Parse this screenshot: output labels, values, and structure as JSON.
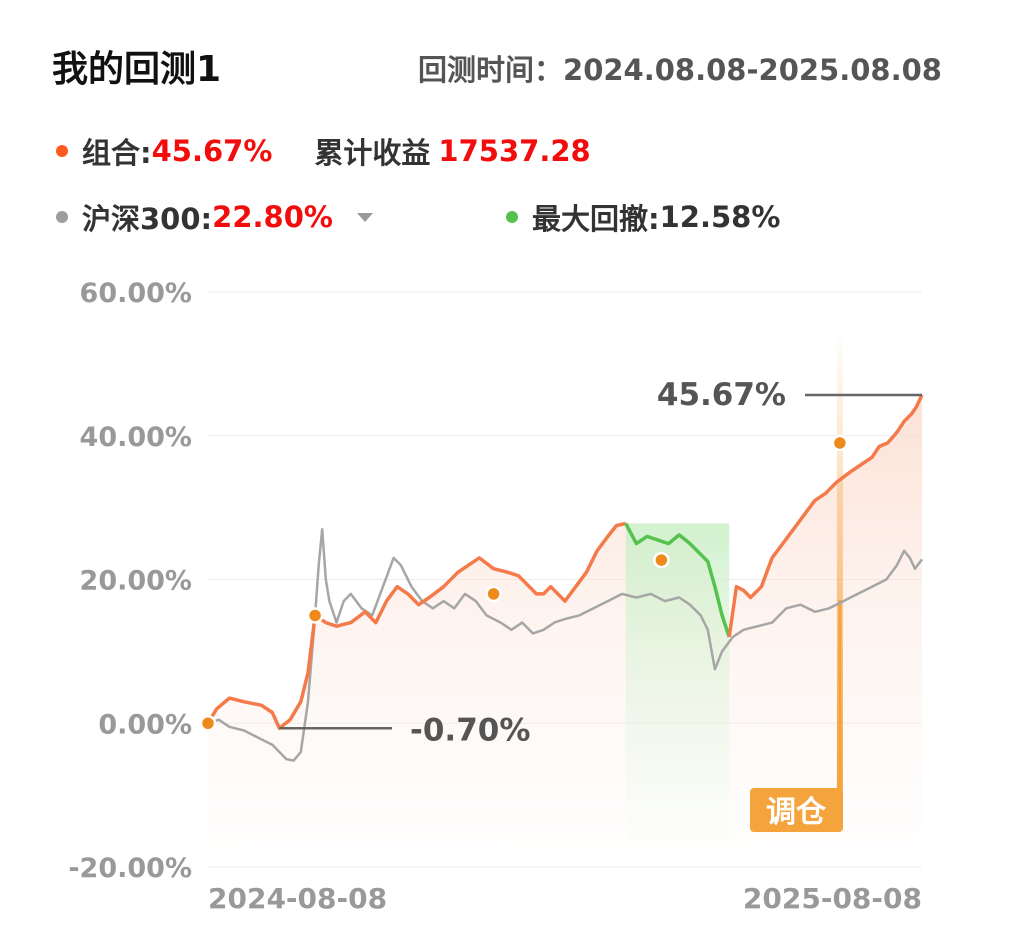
{
  "header": {
    "title": "我的回测1",
    "range_label": "回测时间：",
    "range_value": "2024.08.08-2025.08.08"
  },
  "legend": {
    "portfolio_label": "组合:",
    "portfolio_value": "45.67%",
    "cum_label": "累计收益",
    "cum_value": "17537.28",
    "benchmark_label": "沪深300:",
    "benchmark_value": "22.80%",
    "drawdown_label": "最大回撤:",
    "drawdown_value": "12.58%"
  },
  "colors": {
    "portfolio": "#f47a4a",
    "benchmark": "#a6a6a6",
    "drawdown": "#55c24e",
    "marker": "#ee8a1c",
    "rebalance": "#f5a43d",
    "value_red": "#f20c0c"
  },
  "annotations": {
    "end_value_label": "45.67%",
    "min_value_label": "-0.70%",
    "rebalance_label": "调仓"
  },
  "chart_data": {
    "type": "line",
    "ylim": [
      -20,
      60
    ],
    "yticks": [
      "60.00%",
      "40.00%",
      "20.00%",
      "0.00%",
      "-20.00%"
    ],
    "ytick_values": [
      60,
      40,
      20,
      0,
      -20
    ],
    "xlabels": [
      "2024-08-08",
      "2025-08-08"
    ],
    "grid": true,
    "series": [
      {
        "name": "组合",
        "values": [
          [
            0,
            0
          ],
          [
            0.012,
            2
          ],
          [
            0.03,
            3.5
          ],
          [
            0.05,
            3
          ],
          [
            0.075,
            2.5
          ],
          [
            0.09,
            1.5
          ],
          [
            0.1,
            -0.7
          ],
          [
            0.115,
            0.5
          ],
          [
            0.13,
            3
          ],
          [
            0.14,
            7
          ],
          [
            0.15,
            15
          ],
          [
            0.165,
            14
          ],
          [
            0.18,
            13.5
          ],
          [
            0.2,
            14
          ],
          [
            0.22,
            15.5
          ],
          [
            0.235,
            14
          ],
          [
            0.25,
            17
          ],
          [
            0.265,
            19
          ],
          [
            0.28,
            18
          ],
          [
            0.295,
            16.5
          ],
          [
            0.31,
            17.5
          ],
          [
            0.33,
            19
          ],
          [
            0.35,
            21
          ],
          [
            0.365,
            22
          ],
          [
            0.38,
            23
          ],
          [
            0.4,
            21.5
          ],
          [
            0.42,
            21
          ],
          [
            0.435,
            20.5
          ],
          [
            0.45,
            19
          ],
          [
            0.46,
            18
          ],
          [
            0.47,
            18
          ],
          [
            0.48,
            19
          ],
          [
            0.5,
            17
          ],
          [
            0.515,
            19
          ],
          [
            0.53,
            21
          ],
          [
            0.545,
            24
          ],
          [
            0.56,
            26
          ],
          [
            0.572,
            27.5
          ],
          [
            0.585,
            27.8
          ],
          [
            0.6,
            25
          ],
          [
            0.615,
            26
          ],
          [
            0.63,
            25.5
          ],
          [
            0.645,
            25
          ],
          [
            0.66,
            26.2
          ],
          [
            0.675,
            25
          ],
          [
            0.69,
            23.5
          ],
          [
            0.7,
            22.5
          ],
          [
            0.71,
            19
          ],
          [
            0.72,
            15
          ],
          [
            0.73,
            12
          ],
          [
            0.74,
            19
          ],
          [
            0.75,
            18.5
          ],
          [
            0.76,
            17.5
          ],
          [
            0.775,
            19
          ],
          [
            0.79,
            23
          ],
          [
            0.805,
            25
          ],
          [
            0.82,
            27
          ],
          [
            0.835,
            29
          ],
          [
            0.85,
            31
          ],
          [
            0.865,
            32
          ],
          [
            0.88,
            33.5
          ],
          [
            0.9,
            35
          ],
          [
            0.915,
            36
          ],
          [
            0.93,
            37
          ],
          [
            0.94,
            38.5
          ],
          [
            0.952,
            39
          ],
          [
            0.965,
            40.5
          ],
          [
            0.975,
            42
          ],
          [
            0.985,
            43
          ],
          [
            0.992,
            44
          ],
          [
            1.0,
            45.67
          ]
        ]
      },
      {
        "name": "沪深300",
        "values": [
          [
            0,
            0
          ],
          [
            0.015,
            0.5
          ],
          [
            0.03,
            -0.5
          ],
          [
            0.05,
            -1
          ],
          [
            0.07,
            -2
          ],
          [
            0.09,
            -3
          ],
          [
            0.1,
            -4
          ],
          [
            0.11,
            -5
          ],
          [
            0.12,
            -5.2
          ],
          [
            0.13,
            -4
          ],
          [
            0.14,
            3
          ],
          [
            0.15,
            15
          ],
          [
            0.155,
            22
          ],
          [
            0.16,
            27
          ],
          [
            0.165,
            20
          ],
          [
            0.17,
            17
          ],
          [
            0.18,
            14
          ],
          [
            0.19,
            17
          ],
          [
            0.2,
            18
          ],
          [
            0.215,
            16
          ],
          [
            0.23,
            15
          ],
          [
            0.245,
            19
          ],
          [
            0.26,
            23
          ],
          [
            0.27,
            22
          ],
          [
            0.285,
            19
          ],
          [
            0.3,
            17
          ],
          [
            0.315,
            16
          ],
          [
            0.33,
            17
          ],
          [
            0.345,
            16
          ],
          [
            0.36,
            18
          ],
          [
            0.375,
            17
          ],
          [
            0.39,
            15
          ],
          [
            0.41,
            14
          ],
          [
            0.425,
            13
          ],
          [
            0.44,
            14
          ],
          [
            0.455,
            12.5
          ],
          [
            0.47,
            13
          ],
          [
            0.485,
            14
          ],
          [
            0.5,
            14.5
          ],
          [
            0.52,
            15
          ],
          [
            0.54,
            16
          ],
          [
            0.56,
            17
          ],
          [
            0.58,
            18
          ],
          [
            0.6,
            17.5
          ],
          [
            0.62,
            18
          ],
          [
            0.64,
            17
          ],
          [
            0.66,
            17.5
          ],
          [
            0.675,
            16.5
          ],
          [
            0.69,
            15
          ],
          [
            0.7,
            13
          ],
          [
            0.71,
            7.5
          ],
          [
            0.72,
            10
          ],
          [
            0.735,
            12
          ],
          [
            0.75,
            13
          ],
          [
            0.77,
            13.5
          ],
          [
            0.79,
            14
          ],
          [
            0.81,
            16
          ],
          [
            0.83,
            16.5
          ],
          [
            0.85,
            15.5
          ],
          [
            0.87,
            16
          ],
          [
            0.89,
            17
          ],
          [
            0.91,
            18
          ],
          [
            0.93,
            19
          ],
          [
            0.95,
            20
          ],
          [
            0.965,
            22
          ],
          [
            0.975,
            24
          ],
          [
            0.983,
            23
          ],
          [
            0.99,
            21.5
          ],
          [
            1.0,
            22.8
          ]
        ]
      }
    ],
    "drawdown_range": [
      0.585,
      0.73
    ],
    "markers": [
      [
        0,
        0
      ],
      [
        0.15,
        15
      ],
      [
        0.4,
        18
      ],
      [
        0.635,
        22.7
      ],
      [
        0.885,
        39
      ]
    ],
    "rebalance_at": 0.885,
    "end_value": 45.67,
    "min_value": -0.7,
    "min_at": 0.1
  }
}
